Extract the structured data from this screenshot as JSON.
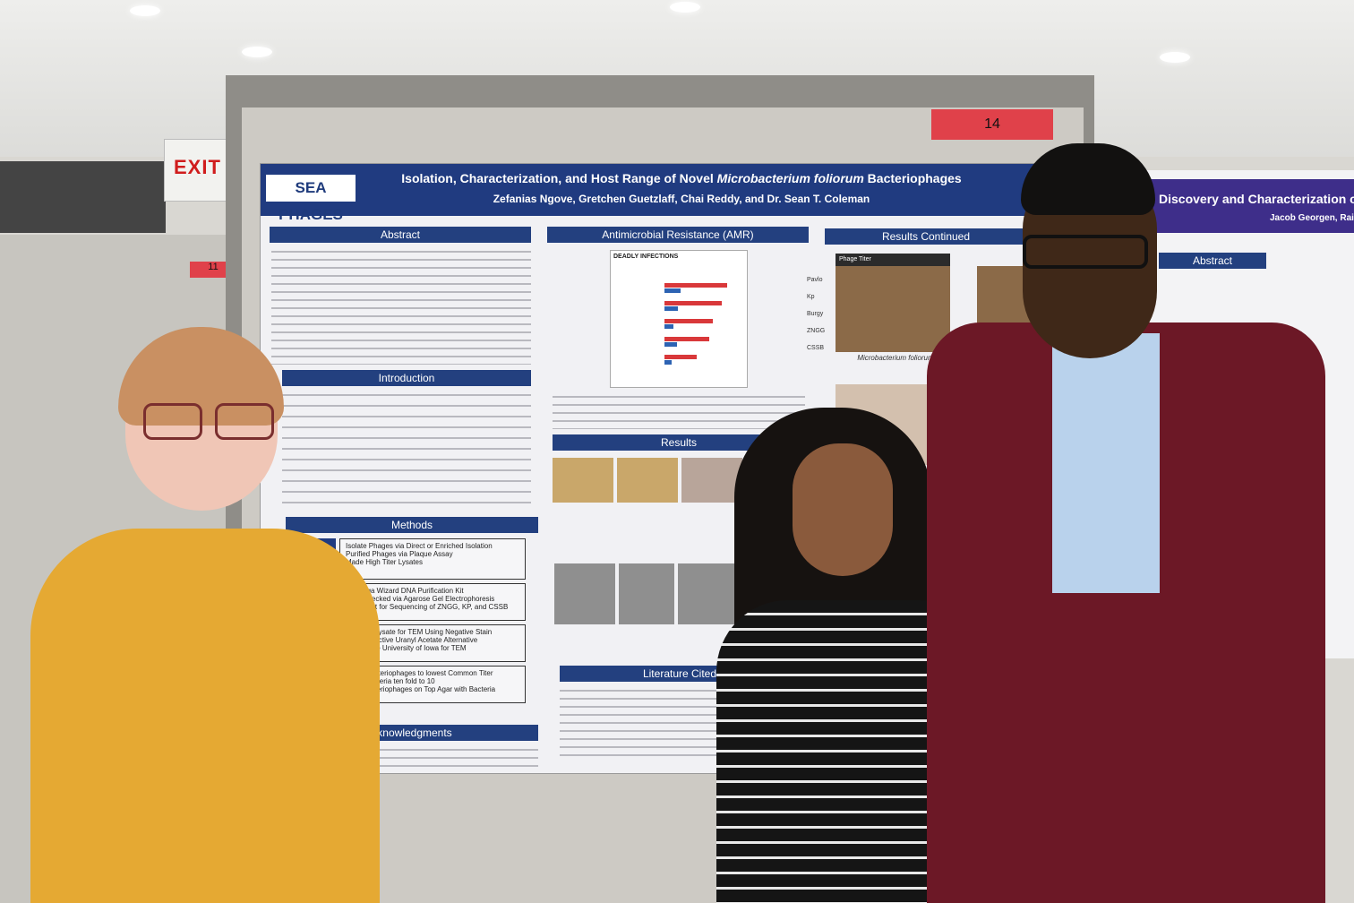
{
  "exit_sign": "EXIT",
  "board_number": "14",
  "left_tag": "11",
  "poster": {
    "logo": "SEA PHAGES",
    "title_prefix": "Isolation, Characterization, and Host Range of Novel ",
    "title_italic": "Microbacterium foliorum",
    "title_suffix": " Bacteriophages",
    "authors": "Zefanias Ngove, Gretchen Guetzlaff, Chai Reddy, and Dr. Sean T. Coleman",
    "sections": {
      "abstract": "Abstract",
      "amr": "Antimicrobial Resistance (AMR)",
      "results_continued": "Results Continued",
      "introduction": "Introduction",
      "results": "Results",
      "methods": "Methods",
      "literature": "Literature Cited",
      "acknowledgments": "Acknowledgments"
    },
    "chart_title": "DEADLY INFECTIONS",
    "phage_titer": "Phage Titer",
    "microbacterium_caption": "Microbacterium foliorum",
    "phage_labels": [
      "Pavlo",
      "Kp",
      "Burgy",
      "ZNGG",
      "CSSB"
    ],
    "methods_items": [
      "Isolate Phages via Direct or Enriched Isolation",
      "Purified Phages via Plaque Assay",
      "Made High Titer Lysates",
      "Promega Wizard DNA Purification Kit",
      "DNA Checked via Agarose Gel Electrophoresis",
      "DNA Sent for Sequencing of ZNGG, KP, and CSSB",
      "Prepped Lysate for TEM Using Negative Stain",
      "Nonradioactive Uranyl Acetate Alternative",
      "Sent to the University of Iowa for TEM",
      "Dilute Bacteriophages to lowest Common Titer",
      "Dilute bacteria ten fold to 10",
      "Spot Bacteriophages on Top Agar with Bacteria"
    ]
  },
  "right_poster": {
    "title": "Discovery and Characterization of",
    "authors": "Jacob Georgen, Rainy",
    "abstract": "Abstract"
  }
}
